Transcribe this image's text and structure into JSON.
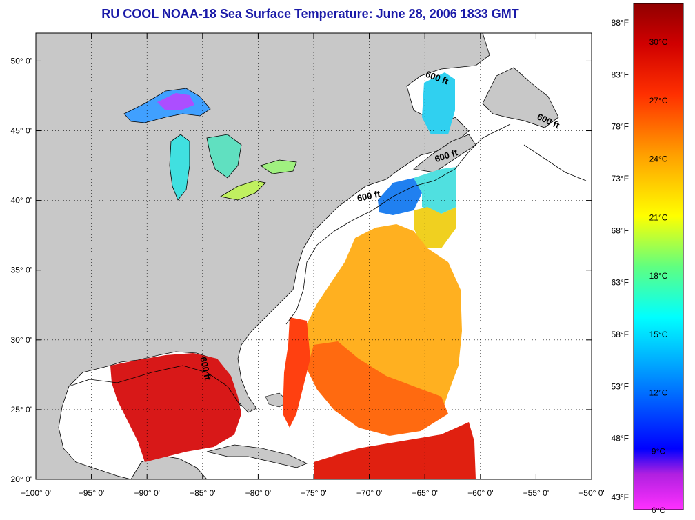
{
  "title": "RU COOL  NOAA-18  Sea Surface Temperature:  June 28, 2006 1833 GMT",
  "map": {
    "lon_range": [
      -100,
      -50
    ],
    "lat_range": [
      20,
      52
    ],
    "lon_ticks": [
      {
        "value": -100,
        "label": "−100° 0'"
      },
      {
        "value": -95,
        "label": "−95° 0'"
      },
      {
        "value": -90,
        "label": "−90° 0'"
      },
      {
        "value": -85,
        "label": "−85° 0'"
      },
      {
        "value": -80,
        "label": "−80° 0'"
      },
      {
        "value": -75,
        "label": "−75° 0'"
      },
      {
        "value": -70,
        "label": "−70° 0'"
      },
      {
        "value": -65,
        "label": "−65° 0'"
      },
      {
        "value": -60,
        "label": "−60° 0'"
      },
      {
        "value": -55,
        "label": "−55° 0'"
      },
      {
        "value": -50,
        "label": "−50° 0'"
      }
    ],
    "lat_ticks": [
      {
        "value": 20,
        "label": "20° 0'"
      },
      {
        "value": 25,
        "label": "25° 0'"
      },
      {
        "value": 30,
        "label": "30° 0'"
      },
      {
        "value": 35,
        "label": "35° 0'"
      },
      {
        "value": 40,
        "label": "40° 0'"
      },
      {
        "value": 45,
        "label": "45° 0'"
      },
      {
        "value": 50,
        "label": "50° 0'"
      }
    ],
    "depth_labels": [
      {
        "text": "600 ft",
        "lon": -64,
        "lat": 48.6,
        "rot": 20
      },
      {
        "text": "600 ft",
        "lon": -54,
        "lat": 45.5,
        "rot": 25
      },
      {
        "text": "600 ft",
        "lon": -63,
        "lat": 43.0,
        "rot": -18
      },
      {
        "text": "600 ft",
        "lon": -70,
        "lat": 40.1,
        "rot": -12
      },
      {
        "text": "600 ft",
        "lon": -85,
        "lat": 27.9,
        "rot": 78
      }
    ],
    "colors": {
      "land": "#c8c8c8",
      "ocean": "#ffffff"
    }
  },
  "colorbar": {
    "fahrenheit_labels": [
      "88°F",
      "83°F",
      "78°F",
      "73°F",
      "68°F",
      "63°F",
      "58°F",
      "53°F",
      "48°F",
      "43°F"
    ],
    "celsius_labels": [
      "30°C",
      "27°C",
      "24°C",
      "21°C",
      "18°C",
      "15°C",
      "12°C",
      "9°C",
      "6°C"
    ],
    "stops": [
      "#ff30ff",
      "#8000c0",
      "#0000ff",
      "#00b0ff",
      "#00ffff",
      "#80ff60",
      "#ffff00",
      "#ffa000",
      "#ff3000",
      "#c00000",
      "#900000"
    ]
  }
}
